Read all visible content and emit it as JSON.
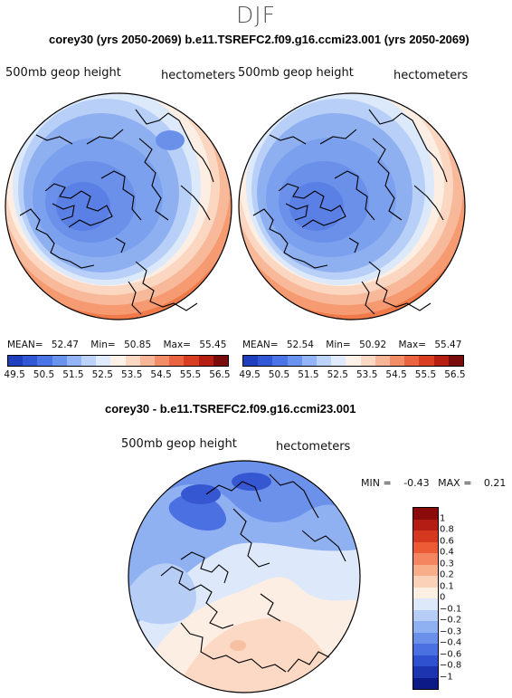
{
  "season": "DJF",
  "header": "corey30 (yrs 2050-2069)  b.e11.TSREFC2.f09.g16.ccmi23.001 (yrs 2050-2069)",
  "left_panel": {
    "var_label": "500mb geop height",
    "unit_label": "hectometers",
    "mean_label": "MEAN=",
    "mean": "52.47",
    "min_label": "Min=",
    "min": "50.85",
    "max_label": "Max=",
    "max": "55.45"
  },
  "right_panel": {
    "var_label": "500mb geop height",
    "unit_label": "hectometers",
    "mean_label": "MEAN=",
    "mean": "52.54",
    "min_label": "Min=",
    "min": "50.92",
    "max_label": "Max=",
    "max": "55.47"
  },
  "abs_colorbar": {
    "colors": [
      "#1f3fbf",
      "#2f57d6",
      "#4b74e6",
      "#6a93f0",
      "#93b4f7",
      "#bcd3fb",
      "#e0ecfd",
      "#fdf1e8",
      "#fbd8c3",
      "#f7b697",
      "#f28d68",
      "#ea6342",
      "#d93d22",
      "#b51f12",
      "#7a0c0c"
    ],
    "ticks": [
      "49.5",
      "50.5",
      "51.5",
      "52.5",
      "53.5",
      "54.5",
      "55.5",
      "56.5"
    ]
  },
  "diff_title": "corey30 - b.e11.TSREFC2.f09.g16.ccmi23.001",
  "diff_panel": {
    "var_label": "500mb geop height",
    "unit_label": "hectometers",
    "min_label": "MIN =",
    "min": "-0.43",
    "max_label": "MAX =",
    "max": "0.21"
  },
  "diff_colorbar": {
    "colors": [
      "#8b0a0a",
      "#b41d13",
      "#d6381f",
      "#ec5a36",
      "#f58560",
      "#f9ae8a",
      "#fbd2b8",
      "#fdf0e3",
      "#dde9fa",
      "#b6cdf6",
      "#8fb0f1",
      "#6a90ea",
      "#4b70e1",
      "#2f50cf",
      "#1d34b0",
      "#0b1a86"
    ],
    "labels": [
      "1",
      "0.8",
      "0.6",
      "0.4",
      "0.3",
      "0.2",
      "0.1",
      "0",
      "−0.1",
      "−0.2",
      "−0.3",
      "−0.4",
      "−0.6",
      "−0.8",
      "−1"
    ]
  }
}
